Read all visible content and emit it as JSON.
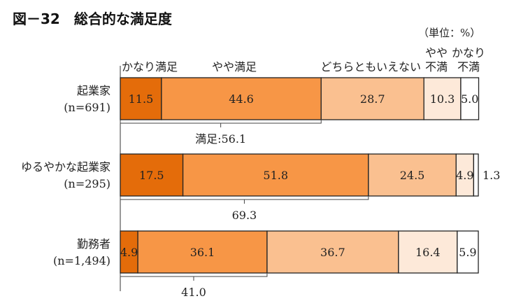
{
  "chart_data": {
    "type": "bar",
    "stacked": true,
    "orientation": "horizontal",
    "title": "図－32　総合的な満足度",
    "unit": "（単位：%）",
    "legend": [
      "かなり満足",
      "やや満足",
      "どちらともいえない",
      "やや不満",
      "かなり不満"
    ],
    "legend_lines": [
      [
        "かなり満足"
      ],
      [
        "やや満足"
      ],
      [
        "どちらともいえない"
      ],
      [
        "やや",
        "不満"
      ],
      [
        "かなり",
        "不満"
      ]
    ],
    "colors": [
      "#E46C0A",
      "#F79646",
      "#FAC090",
      "#FDE9D9",
      "#FFFFFF"
    ],
    "categories": [
      {
        "name": "起業家",
        "n": "(n=691)",
        "values": [
          11.5,
          44.6,
          28.7,
          10.3,
          5.0
        ],
        "labels": [
          "11.5",
          "44.6",
          "28.7",
          "10.3",
          "5.0"
        ],
        "satisfied_label": "満足:56.1"
      },
      {
        "name": "ゆるやかな起業家",
        "n": "(n=295)",
        "values": [
          17.5,
          51.8,
          24.5,
          4.9,
          1.3
        ],
        "labels": [
          "17.5",
          "51.8",
          "24.5",
          "4.9",
          "1.3"
        ],
        "satisfied_label": "69.3"
      },
      {
        "name": "勤務者",
        "n": "(n=1,494)",
        "values": [
          4.9,
          36.1,
          36.7,
          16.4,
          5.9
        ],
        "labels": [
          "4.9",
          "36.1",
          "36.7",
          "16.4",
          "5.9"
        ],
        "satisfied_label": "41.0"
      }
    ],
    "xlim": [
      0,
      100
    ]
  }
}
